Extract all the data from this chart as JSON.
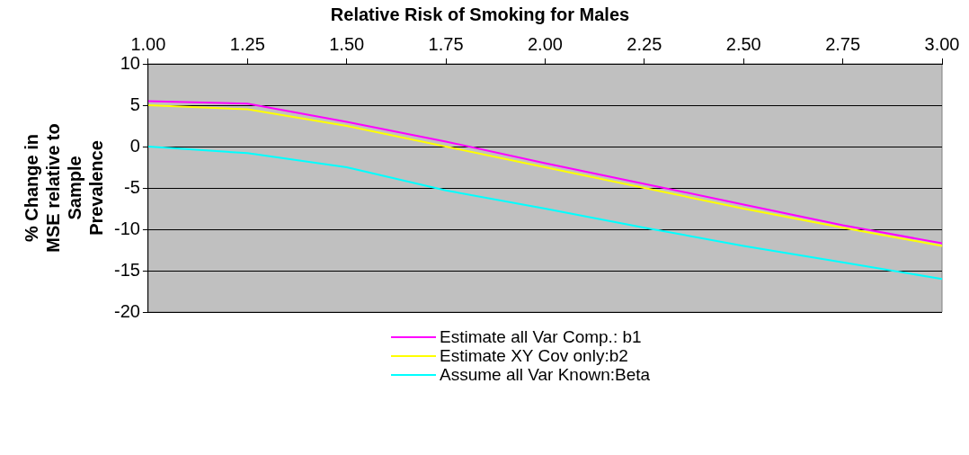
{
  "chart_data": {
    "type": "line",
    "title": "Relative Risk of Smoking for Males",
    "ylabel": "% Change in\nMSE relative to\nSample\nPrevalence",
    "x": [
      1,
      1.25,
      1.5,
      1.75,
      2,
      2.25,
      2.5,
      2.75,
      3
    ],
    "xlim": [
      1,
      3
    ],
    "xticks": [
      {
        "value": 1,
        "label": "1.00"
      },
      {
        "value": 1.25,
        "label": "1.25"
      },
      {
        "value": 1.5,
        "label": "1.50"
      },
      {
        "value": 1.75,
        "label": "1.75"
      },
      {
        "value": 2,
        "label": "2.00"
      },
      {
        "value": 2.25,
        "label": "2.25"
      },
      {
        "value": 2.5,
        "label": "2.50"
      },
      {
        "value": 2.75,
        "label": "2.75"
      },
      {
        "value": 3,
        "label": "3.00"
      }
    ],
    "ylim": [
      -20,
      10
    ],
    "yticks": [
      -20,
      -15,
      -10,
      -5,
      0,
      5,
      10
    ],
    "grid": "y",
    "legend": "bottom",
    "marker": "none",
    "line_style": "solid",
    "series": [
      {
        "name": "Estimate all Var Comp.: b1",
        "color": "#ff00ff",
        "values": [
          5.5,
          5.2,
          3,
          0.6,
          -2,
          -4.5,
          -7,
          -9.5,
          -11.7
        ]
      },
      {
        "name": "Estimate XY Cov only:b2",
        "color": "#ffff00",
        "values": [
          5,
          4.5,
          2.5,
          0,
          -2.5,
          -5,
          -7.5,
          -9.8,
          -12
        ]
      },
      {
        "name": "Assume all Var Known:Beta",
        "color": "#00ffff",
        "values": [
          0,
          -0.8,
          -2.5,
          -5.3,
          -7.5,
          -9.8,
          -12,
          -14,
          -16
        ]
      }
    ]
  }
}
